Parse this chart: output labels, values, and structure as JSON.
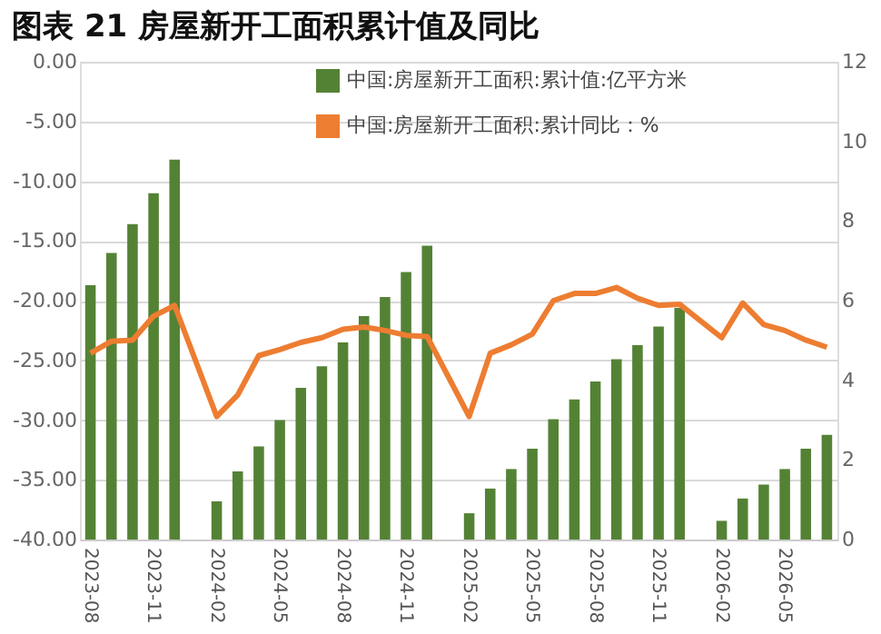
{
  "chart_data": {
    "type": "bar",
    "title": "图表 21  房屋新开工面积累计值及同比",
    "categories": [
      "2023-08",
      null,
      null,
      "2023-11",
      null,
      null,
      "2024-02",
      null,
      null,
      "2024-05",
      null,
      null,
      "2024-08",
      null,
      null,
      "2024-11",
      null,
      null,
      "2025-02",
      null,
      null,
      "2025-05",
      null,
      null,
      "2025-08",
      null,
      null,
      "2025-11",
      null,
      null,
      "2026-02",
      null,
      null,
      "2026-05",
      null,
      null
    ],
    "series": [
      {
        "name": "中国:房屋新开工面积:累计值:亿平方米",
        "axis": "y2",
        "color": "#548235",
        "values": [
          6.39,
          7.2,
          7.92,
          8.7,
          9.54,
          null,
          0.96,
          1.71,
          2.34,
          3.0,
          3.81,
          4.35,
          4.95,
          5.61,
          6.09,
          6.72,
          7.38,
          null,
          0.66,
          1.28,
          1.77,
          2.28,
          3.02,
          3.52,
          3.97,
          4.53,
          4.88,
          5.35,
          5.82,
          null,
          0.47,
          1.03,
          1.38,
          1.77,
          2.28,
          2.63
        ]
      },
      {
        "name": "中国:房屋新开工面积:累计同比：%",
        "type": "line",
        "color": "#ed7d31",
        "values": [
          -24.4,
          -23.4,
          -23.3,
          -21.3,
          -20.4,
          null,
          -29.7,
          -27.9,
          -24.6,
          -24.1,
          -23.5,
          -23.1,
          -22.4,
          -22.2,
          -22.5,
          -22.9,
          -23.0,
          null,
          -29.7,
          -24.4,
          -23.7,
          -22.8,
          -20.0,
          -19.4,
          -19.4,
          -18.9,
          -19.8,
          -20.4,
          -20.3,
          null,
          -23.1,
          -20.2,
          -22.0,
          -22.5,
          -23.3,
          -23.9
        ]
      }
    ],
    "ylim": [
      -40,
      0
    ],
    "yticks": [
      {
        "value": -40,
        "label": "-40.00"
      },
      {
        "value": -35,
        "label": "-35.00"
      },
      {
        "value": -30,
        "label": "-30.00"
      },
      {
        "value": -25,
        "label": "-25.00"
      },
      {
        "value": -20,
        "label": "-20.00"
      },
      {
        "value": -15,
        "label": "-15.00"
      },
      {
        "value": -10,
        "label": "-10.00"
      },
      {
        "value": -5,
        "label": "-5.00"
      },
      {
        "value": 0,
        "label": "0.00"
      }
    ],
    "y2lim": [
      0,
      12
    ],
    "y2ticks": [
      0,
      2,
      4,
      6,
      8,
      10,
      12
    ],
    "grid": "y",
    "legend": "top",
    "line_style": "solid",
    "marker": "none"
  }
}
